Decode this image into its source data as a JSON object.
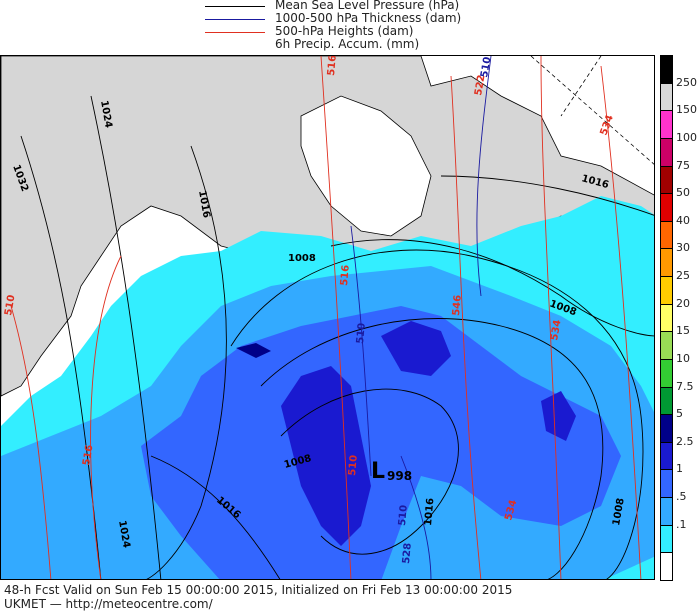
{
  "legend": [
    {
      "label": "Mean Sea Level Pressure (hPa)",
      "color": "#000000"
    },
    {
      "label": "1000-500 hPa Thickness (dam)",
      "color": "#1a1aa0"
    },
    {
      "label": "500-hPa Heights (dam)",
      "color": "#e03020"
    },
    {
      "label": "6h Precip. Accum. (mm)",
      "color": "#000000"
    }
  ],
  "colorbar": [
    {
      "label": "250",
      "color": "#000000"
    },
    {
      "label": "150",
      "color": "#d8d8d8"
    },
    {
      "label": "100",
      "color": "#ff33cc"
    },
    {
      "label": "75",
      "color": "#cc0066"
    },
    {
      "label": "50",
      "color": "#a00000"
    },
    {
      "label": "40",
      "color": "#e00000"
    },
    {
      "label": "30",
      "color": "#ff6600"
    },
    {
      "label": "25",
      "color": "#ff9900"
    },
    {
      "label": "20",
      "color": "#ffcc00"
    },
    {
      "label": "15",
      "color": "#ffff66"
    },
    {
      "label": "10",
      "color": "#99dd55"
    },
    {
      "label": "7.5",
      "color": "#33cc33"
    },
    {
      "label": "5",
      "color": "#009933"
    },
    {
      "label": "2.5",
      "color": "#000088"
    },
    {
      "label": "1",
      "color": "#1a1ad0"
    },
    {
      "label": ".5",
      "color": "#3366ff"
    },
    {
      "label": ".1",
      "color": "#33aaff"
    },
    {
      "label": "",
      "color": "#33eeff"
    },
    {
      "label": "",
      "color": "#ffffff"
    }
  ],
  "map_labels": {
    "isobars": [
      "1032",
      "1024",
      "1016",
      "1008",
      "1008",
      "1016",
      "1008",
      "1016",
      "1024",
      "1008",
      "1016"
    ],
    "heights": [
      "510",
      "516",
      "516",
      "516",
      "522",
      "534",
      "534",
      "534",
      "510",
      "546"
    ],
    "thickness": [
      "510",
      "510",
      "510",
      "528"
    ],
    "low_symbol": "L",
    "low_value": "998"
  },
  "footer": {
    "line1": "48-h Fcst Valid on Sun Feb 15 00:00:00 2015, Initialized on Fri Feb 13 00:00:00 2015",
    "line2": "UKMET  — http://meteocentre.com/"
  }
}
